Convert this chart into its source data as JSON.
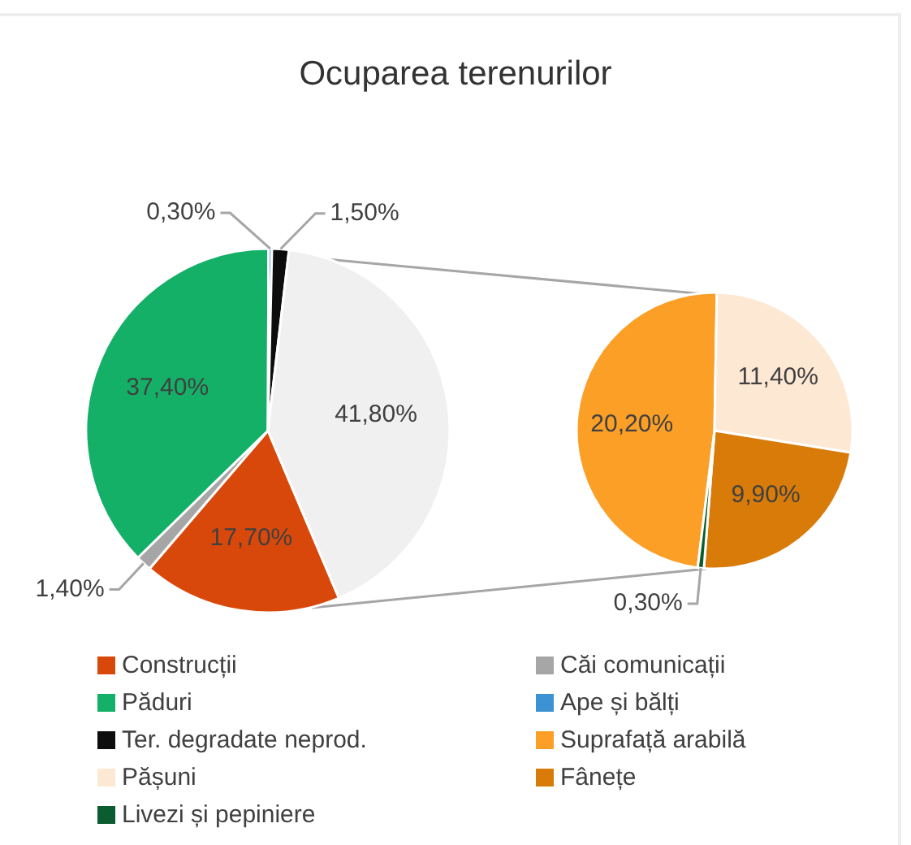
{
  "chart_data": [
    {
      "type": "pie",
      "title": "Ocuparea terenurilor",
      "categories": [
        "Construcții",
        "Căi comunicații",
        "Păduri",
        "Ape și bălți",
        "Ter. degradate neprod.",
        null
      ],
      "values": [
        17.7,
        1.4,
        37.4,
        0.3,
        1.5,
        41.8
      ],
      "colors": [
        "#d9480b",
        "#a6a6a6",
        "#14b067",
        "#3d92d4",
        "#0d0d0d",
        "#f0f0f0"
      ],
      "value_labels": [
        "17,70%",
        "1,40%",
        "37,40%",
        "0,30%",
        "1,50%",
        "41,80%"
      ],
      "legend": "bottom"
    },
    {
      "type": "pie",
      "categories": [
        "Suprafață arabilă",
        "Pășuni",
        "Fânețe",
        "Livezi și pepiniere"
      ],
      "values": [
        20.2,
        11.4,
        9.9,
        0.3
      ],
      "colors": [
        "#fb9f27",
        "#fde8d3",
        "#d97b09",
        "#0b5c2e"
      ],
      "value_labels": [
        "20,20%",
        "11,40%",
        "9,90%",
        "0,30%"
      ],
      "legend": "bottom"
    }
  ]
}
